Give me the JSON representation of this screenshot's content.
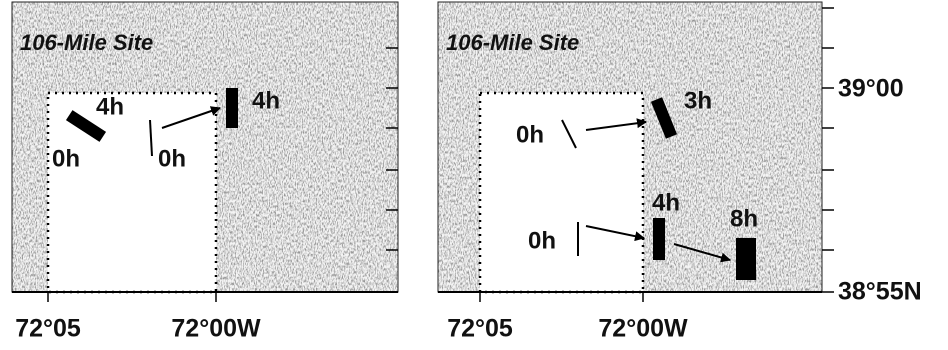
{
  "panels": [
    {
      "title": "106-Mile Site",
      "labels": [
        "4h",
        "0h",
        "0h",
        "4h"
      ],
      "x_ticks": [
        "72°05",
        "72°00W"
      ]
    },
    {
      "title": "106-Mile Site",
      "labels": [
        "3h",
        "0h",
        "4h",
        "0h",
        "8h"
      ],
      "x_ticks": [
        "72°05",
        "72°00W"
      ]
    }
  ],
  "y_ticks": [
    "39°00",
    "38°55N"
  ]
}
